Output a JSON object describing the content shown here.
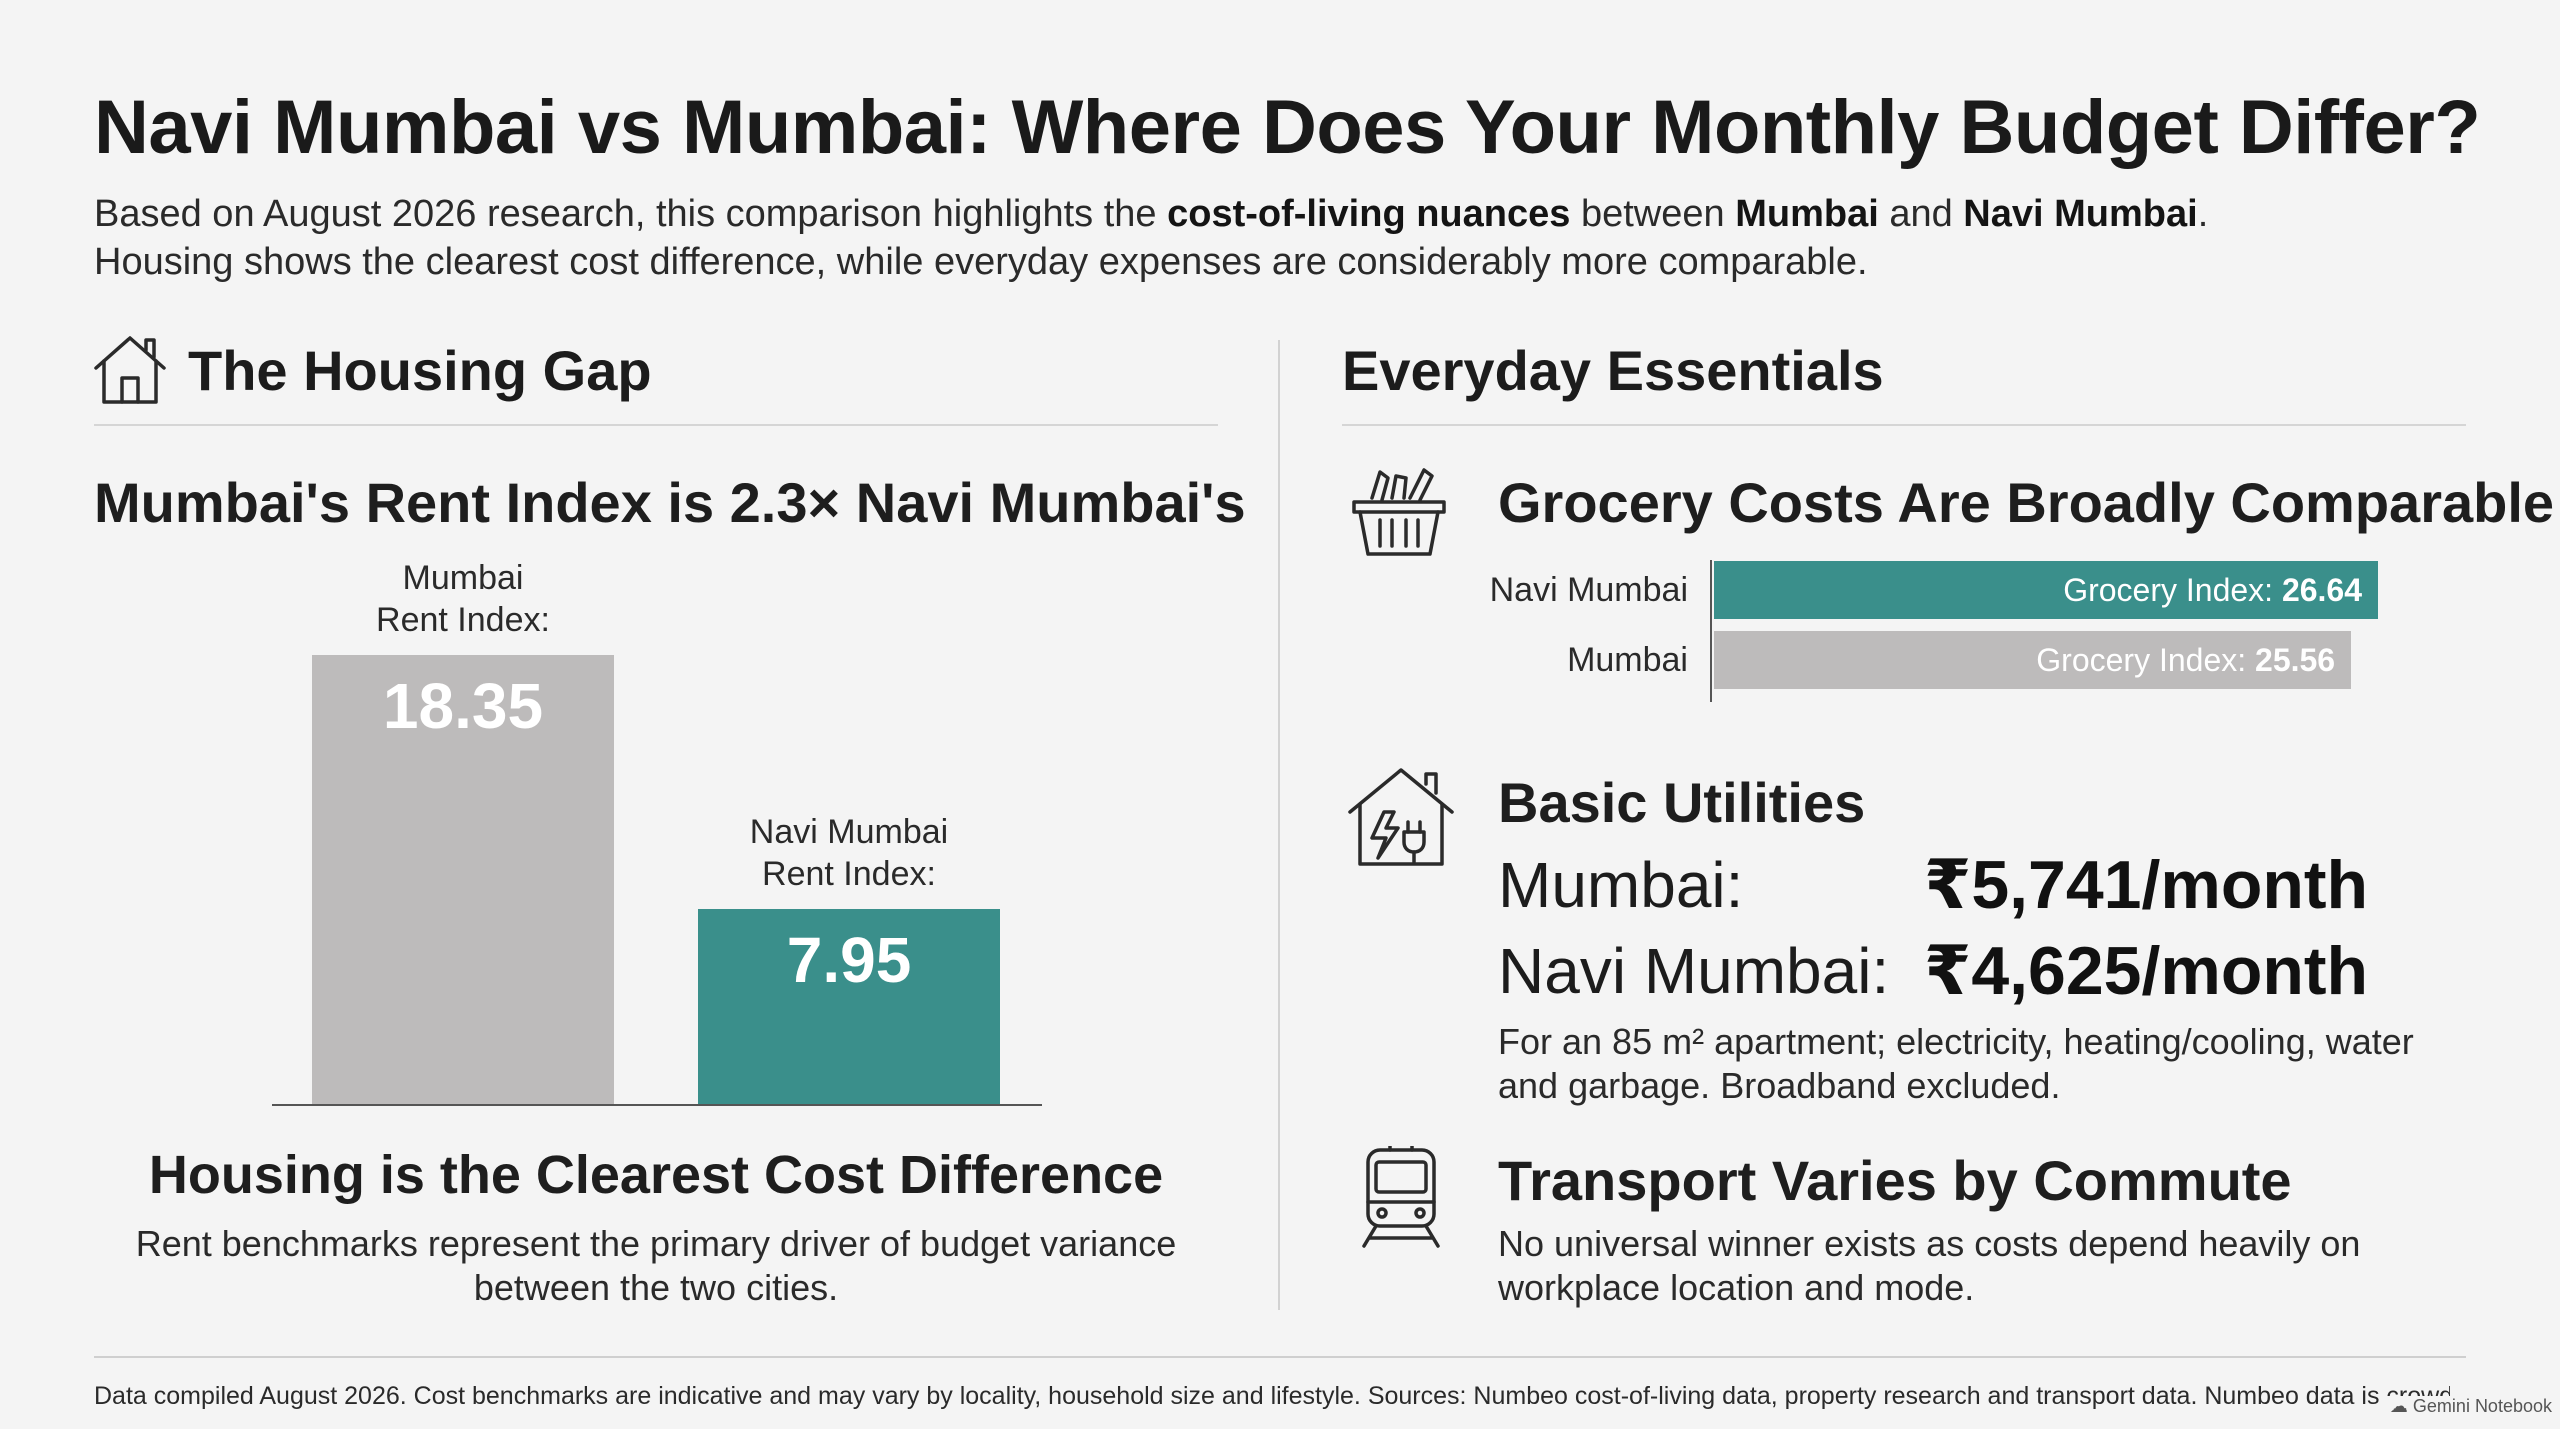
{
  "title": "Navi Mumbai vs Mumbai: Where Does Your Monthly Budget Differ?",
  "subtitle": {
    "p1": "Based on August 2026 research, this comparison highlights the ",
    "b1": "cost-of-living nuances",
    "p2": " between ",
    "b2": "Mumbai",
    "p3": " and ",
    "b3": "Navi Mumbai",
    "p4": ".",
    "line2": "Housing shows the clearest cost difference, while everyday expenses are considerably more comparable."
  },
  "housing": {
    "section_title": "The Housing Gap",
    "icon": "house-icon",
    "chart_title": "Mumbai's Rent Index is 2.3× Navi Mumbai's",
    "takeaway_title": "Housing is the Clearest Cost Difference",
    "takeaway_text": "Rent benchmarks represent the primary driver of budget variance between the two cities."
  },
  "essentials": {
    "section_title": "Everyday Essentials",
    "grocery": {
      "icon": "grocery-basket-icon",
      "title": "Grocery Costs Are Broadly Comparable",
      "value_prefix": "Grocery Index: "
    },
    "utilities": {
      "icon": "house-plug-icon",
      "title": "Basic Utilities",
      "rows": [
        {
          "city": "Mumbai:",
          "amount": "₹5,741/month"
        },
        {
          "city": "Navi Mumbai:",
          "amount": "₹4,625/month"
        }
      ],
      "note": "For an 85 m² apartment; electricity, heating/cooling, water and garbage. Broadband excluded."
    },
    "transport": {
      "icon": "train-icon",
      "title": "Transport Varies by Commute",
      "text": "No universal winner exists as costs depend heavily on workplace location and mode."
    }
  },
  "footer": "Data compiled August 2026. Cost benchmarks are indicative and may vary by locality, household size and lifestyle. Sources: Numbeo cost-of-living data, property research and transport data. Numbeo data is crowdsourced.",
  "watermark": "Gemini Notebook",
  "colors": {
    "teal": "#3a8f8b",
    "grey": "#bdbbbb",
    "background": "#f4f4f4"
  },
  "chart_data": [
    {
      "type": "bar",
      "title": "Mumbai's Rent Index is 2.3× Navi Mumbai's",
      "categories": [
        "Mumbai\nRent Index:",
        "Navi Mumbai\nRent Index:"
      ],
      "values": [
        18.35,
        7.95
      ],
      "colors": [
        "#bdbbbb",
        "#3a8f8b"
      ],
      "ylim": [
        0,
        19
      ]
    },
    {
      "type": "bar",
      "orientation": "horizontal",
      "title": "Grocery Costs Are Broadly Comparable",
      "categories": [
        "Navi Mumbai",
        "Mumbai"
      ],
      "values": [
        26.64,
        25.56
      ],
      "colors": [
        "#3a8f8b",
        "#bdbbbb"
      ],
      "xlim": [
        0,
        27
      ]
    }
  ]
}
